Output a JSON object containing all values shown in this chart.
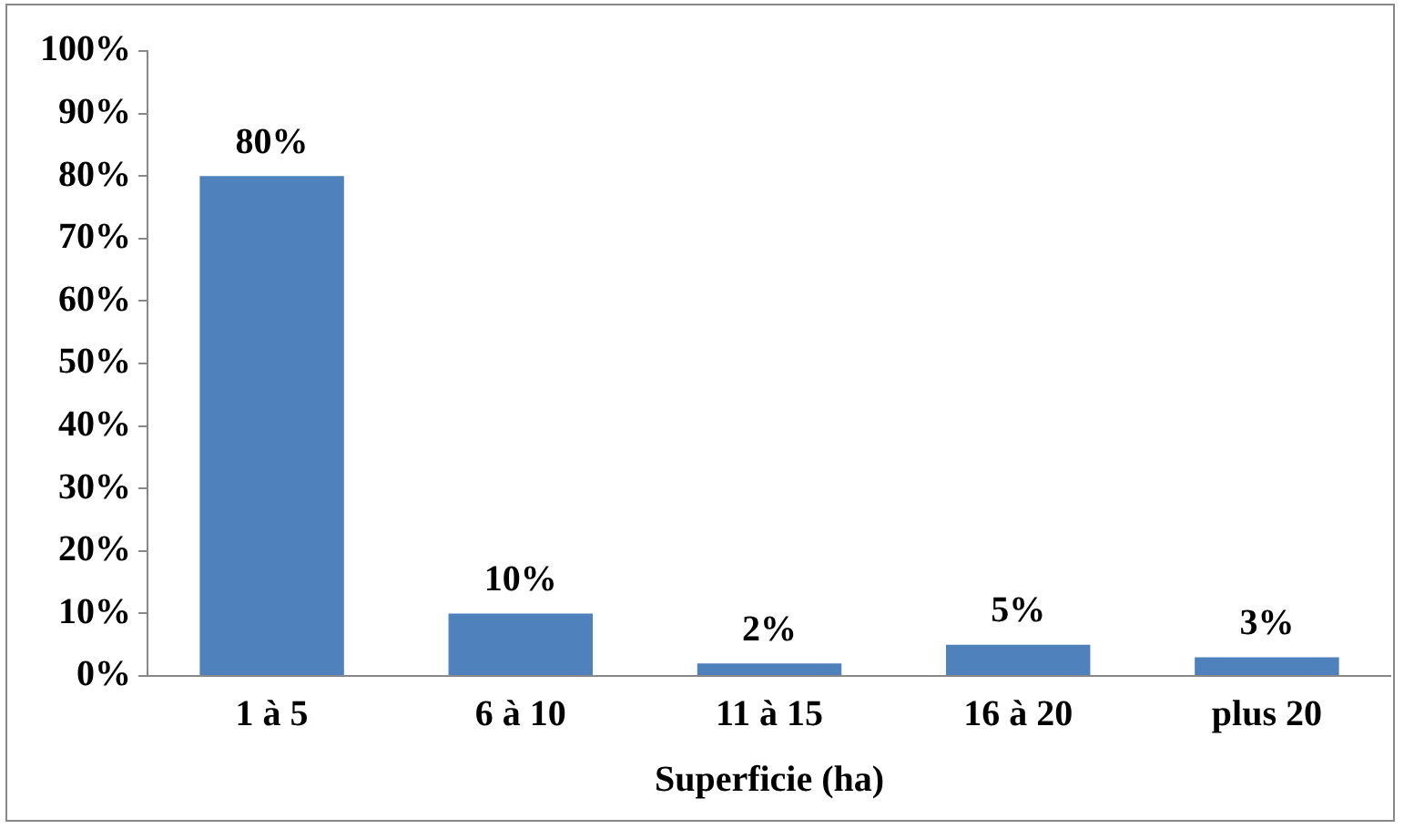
{
  "chart_data": {
    "type": "bar",
    "xlabel": "Superficie (ha)",
    "categories": [
      "1 à 5",
      "6 à 10",
      "11 à 15",
      "16 à 20",
      "plus 20"
    ],
    "values": [
      80,
      10,
      2,
      5,
      3
    ],
    "value_labels": [
      "80%",
      "10%",
      "2%",
      "5%",
      "3%"
    ],
    "color": "#4f81bd",
    "ylim": [
      0,
      100
    ],
    "yticks": [
      {
        "value": 0,
        "label": "0%"
      },
      {
        "value": 10,
        "label": "10%"
      },
      {
        "value": 20,
        "label": "20%"
      },
      {
        "value": 30,
        "label": "30%"
      },
      {
        "value": 40,
        "label": "40%"
      },
      {
        "value": 50,
        "label": "50%"
      },
      {
        "value": 60,
        "label": "60%"
      },
      {
        "value": 70,
        "label": "70%"
      },
      {
        "value": 80,
        "label": "80%"
      },
      {
        "value": 90,
        "label": "90%"
      },
      {
        "value": 100,
        "label": "100%"
      }
    ],
    "grid": false,
    "legend": false
  }
}
